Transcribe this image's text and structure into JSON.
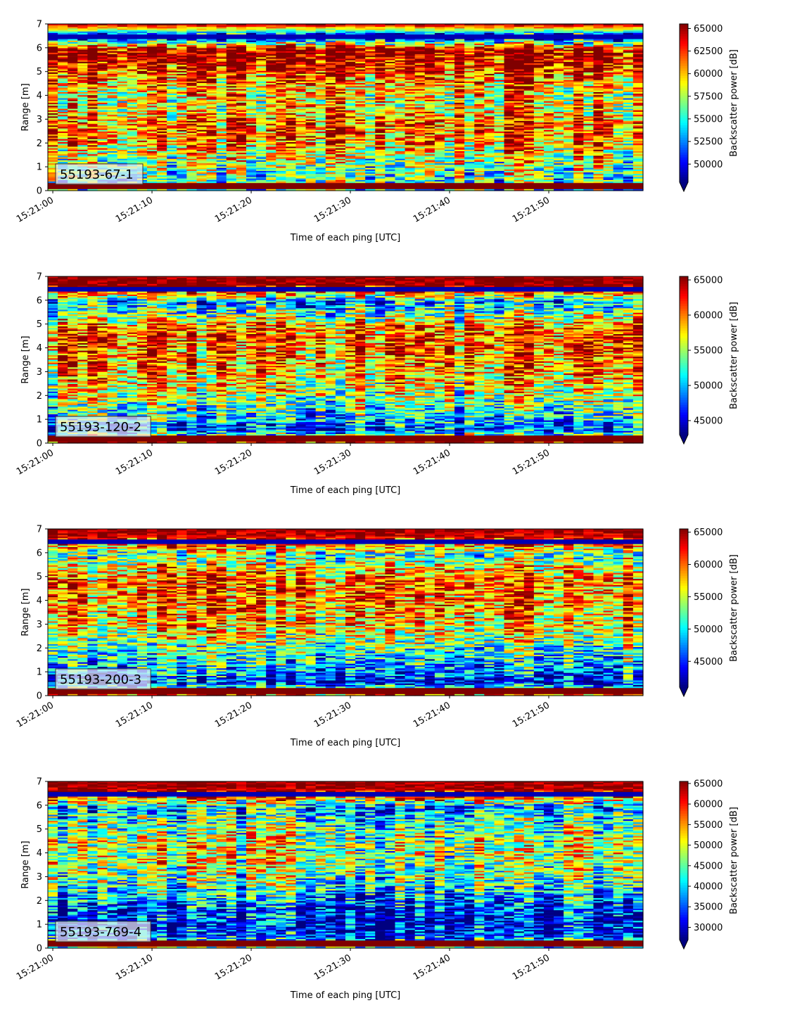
{
  "colormap": "jet",
  "colors": {
    "jet_low": "#00007f",
    "jet_mid": "#7fff7f",
    "jet_high": "#7f0000",
    "label_box_fill": "#f0f0f0",
    "label_box_edge": "#333333"
  },
  "chart_data": [
    {
      "type": "heatmap",
      "label": "55193-67-1",
      "xlabel": "Time of each ping [UTC]",
      "ylabel": "Range [m]",
      "xticks": [
        "15:21:00",
        "15:21:10",
        "15:21:20",
        "15:21:30",
        "15:21:40",
        "15:21:50"
      ],
      "xlim_seconds": [
        -0.5,
        59.5
      ],
      "ylim": [
        0,
        7
      ],
      "yticks": [
        "0",
        "1",
        "2",
        "3",
        "4",
        "5",
        "6",
        "7"
      ],
      "colorbar": {
        "label": "Backscatter power [dB]",
        "vmin": 48000,
        "vmax": 65500,
        "extend": "min",
        "ticks": [
          "50000",
          "52500",
          "55000",
          "57500",
          "60000",
          "62500",
          "65000"
        ]
      },
      "profile": [
        65500,
        48000,
        65500,
        64500,
        62500,
        60000,
        59000,
        60000,
        62000,
        61000,
        59000,
        57000,
        56000,
        55000
      ]
    },
    {
      "type": "heatmap",
      "label": "55193-120-2",
      "xlabel": "Time of each ping [UTC]",
      "ylabel": "Range [m]",
      "xticks": [
        "15:21:00",
        "15:21:10",
        "15:21:20",
        "15:21:30",
        "15:21:40",
        "15:21:50"
      ],
      "xlim_seconds": [
        -0.5,
        59.5
      ],
      "ylim": [
        0,
        7
      ],
      "yticks": [
        "0",
        "1",
        "2",
        "3",
        "4",
        "5",
        "6",
        "7"
      ],
      "colorbar": {
        "label": "Backscatter power [dB]",
        "vmin": 43000,
        "vmax": 65500,
        "extend": "min",
        "ticks": [
          "45000",
          "50000",
          "55000",
          "60000",
          "65000"
        ]
      },
      "profile": [
        65500,
        65500,
        49000,
        54000,
        60000,
        61000,
        60000,
        59000,
        58000,
        56000,
        53000,
        51000,
        47000,
        65000
      ]
    },
    {
      "type": "heatmap",
      "label": "55193-200-3",
      "xlabel": "Time of each ping [UTC]",
      "ylabel": "Range [m]",
      "xticks": [
        "15:21:00",
        "15:21:10",
        "15:21:20",
        "15:21:30",
        "15:21:40",
        "15:21:50"
      ],
      "xlim_seconds": [
        -0.5,
        59.5
      ],
      "ylim": [
        0,
        7
      ],
      "yticks": [
        "0",
        "1",
        "2",
        "3",
        "4",
        "5",
        "6",
        "7"
      ],
      "colorbar": {
        "label": "Backscatter power [dB]",
        "vmin": 41000,
        "vmax": 65500,
        "extend": "min",
        "ticks": [
          "45000",
          "50000",
          "55000",
          "60000",
          "65000"
        ]
      },
      "profile": [
        65500,
        62000,
        52000,
        57000,
        60000,
        60000,
        59000,
        58000,
        56000,
        53000,
        50000,
        48000,
        44000,
        62000
      ]
    },
    {
      "type": "heatmap",
      "label": "55193-769-4",
      "xlabel": "Time of each ping [UTC]",
      "ylabel": "Range [m]",
      "xticks": [
        "15:21:00",
        "15:21:10",
        "15:21:20",
        "15:21:30",
        "15:21:40",
        "15:21:50"
      ],
      "xlim_seconds": [
        -0.5,
        59.5
      ],
      "ylim": [
        0,
        7
      ],
      "yticks": [
        "0",
        "1",
        "2",
        "3",
        "4",
        "5",
        "6",
        "7"
      ],
      "colorbar": {
        "label": "Backscatter power [dB]",
        "vmin": 27000,
        "vmax": 65500,
        "extend": "min",
        "ticks": [
          "30000",
          "35000",
          "40000",
          "45000",
          "50000",
          "55000",
          "60000",
          "65000"
        ]
      },
      "profile": [
        65500,
        63000,
        38000,
        42000,
        46000,
        48000,
        48000,
        46000,
        43000,
        38000,
        33000,
        31000,
        33000,
        45000
      ]
    }
  ]
}
